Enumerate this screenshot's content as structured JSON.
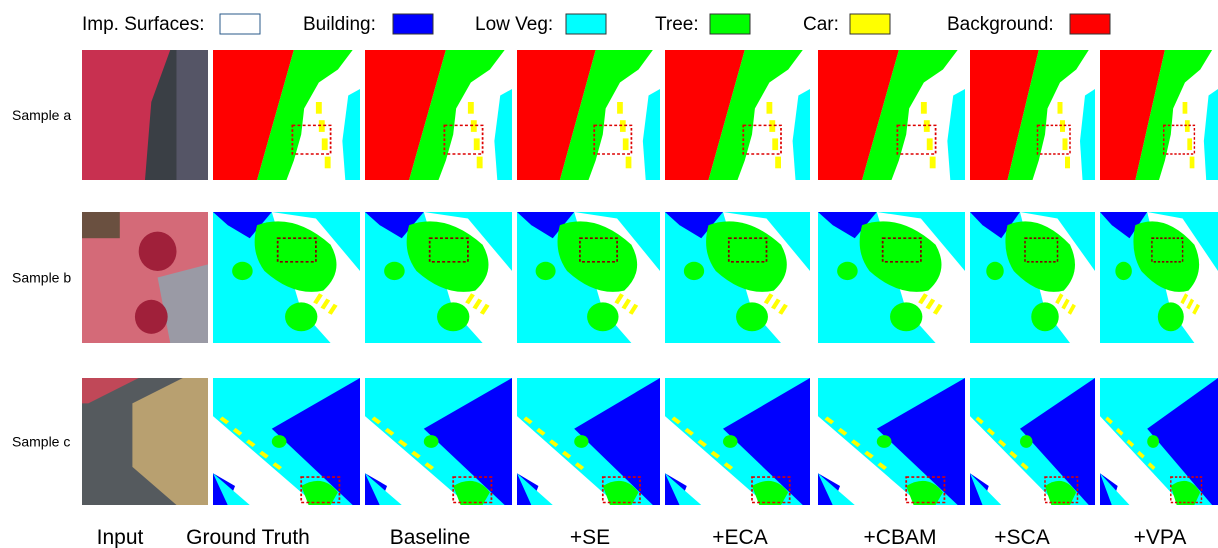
{
  "legend": [
    {
      "label": "Imp. Surfaces:",
      "color": "#ffffff"
    },
    {
      "label": "Building:",
      "color": "#0000ff"
    },
    {
      "label": "Low Veg:",
      "color": "#00ffff"
    },
    {
      "label": "Tree:",
      "color": "#00ff00"
    },
    {
      "label": "Car:",
      "color": "#ffff00"
    },
    {
      "label": "Background:",
      "color": "#ff0000"
    }
  ],
  "rows": [
    "Sample a",
    "Sample b",
    "Sample c"
  ],
  "columns": [
    "Input",
    "Ground Truth",
    "Baseline",
    "+SE",
    "+ECA",
    "+CBAM",
    "+SCA",
    "+VPA"
  ]
}
